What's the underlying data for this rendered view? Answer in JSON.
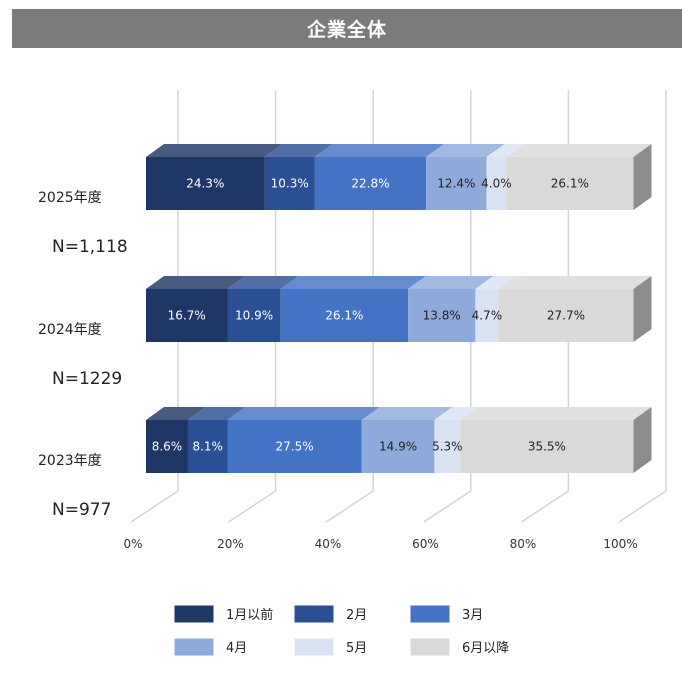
{
  "title": "企業全体",
  "chart_data": {
    "type": "bar",
    "orientation": "horizontal",
    "stacked": "100%",
    "style": "3d",
    "categories": [
      "2025年度",
      "2024年度",
      "2023年度"
    ],
    "sample_sizes": [
      "N=1,118",
      "N=1229",
      "N=977"
    ],
    "series": [
      {
        "name": "1月以前",
        "values": [
          24.3,
          16.7,
          8.6
        ],
        "color": "#1f3764",
        "labels": [
          "24.3%",
          "16.7%",
          "8.6%"
        ]
      },
      {
        "name": "2月",
        "values": [
          10.3,
          10.9,
          8.1
        ],
        "color": "#2b4f94",
        "labels": [
          "10.3%",
          "10.9%",
          "8.1%"
        ]
      },
      {
        "name": "3月",
        "values": [
          22.8,
          26.1,
          27.5
        ],
        "color": "#4472c4",
        "labels": [
          "22.8%",
          "26.1%",
          "27.5%"
        ]
      },
      {
        "name": "4月",
        "values": [
          12.4,
          13.8,
          14.9
        ],
        "color": "#8eaadb",
        "labels": [
          "12.4%",
          "13.8%",
          "14.9%"
        ]
      },
      {
        "name": "5月",
        "values": [
          4.0,
          4.7,
          5.3
        ],
        "color": "#dae3f3",
        "labels": [
          "4.0%",
          "4.7%",
          "5.3%"
        ]
      },
      {
        "name": "6月以降",
        "values": [
          26.1,
          27.7,
          35.5
        ],
        "color": "#d9d9d9",
        "labels": [
          "26.1%",
          "27.7%",
          "35.5%"
        ]
      }
    ],
    "label_colors": [
      "#ffffff",
      "#ffffff",
      "#ffffff",
      "#222222",
      "#222222",
      "#222222"
    ],
    "xlim": [
      0,
      100
    ],
    "xticks": [
      "0%",
      "20%",
      "40%",
      "60%",
      "80%",
      "100%"
    ],
    "grid": true,
    "legend_position": "bottom"
  }
}
